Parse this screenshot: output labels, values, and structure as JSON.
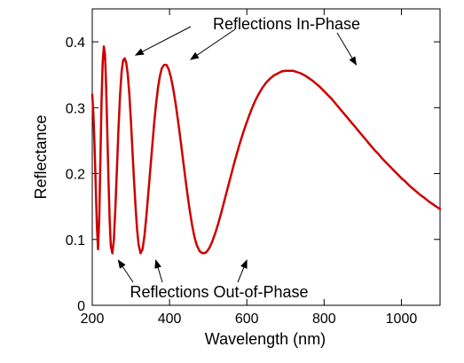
{
  "chart_data": {
    "type": "line",
    "title": "",
    "xlabel": "Wavelength (nm)",
    "ylabel": "Reflectance",
    "xlim": [
      200,
      1100
    ],
    "ylim": [
      0,
      0.45
    ],
    "xticks": [
      200,
      400,
      600,
      800,
      1000
    ],
    "yticks": [
      0,
      0.1,
      0.2,
      0.3,
      0.4
    ],
    "xtick_labels": [
      "200",
      "400",
      "600",
      "800",
      "1000"
    ],
    "ytick_labels": [
      "0",
      "0.1",
      "0.2",
      "0.3",
      "0.4"
    ],
    "grid": false,
    "line_color": "#cc0000",
    "series": [
      {
        "x": [
          200,
          203,
          206,
          209,
          212,
          215,
          218,
          221,
          224,
          227,
          230,
          233,
          236,
          239,
          242,
          245,
          248,
          252,
          256,
          260,
          264,
          268,
          272,
          276,
          280,
          284,
          288,
          292,
          296,
          300,
          304,
          308,
          312,
          316,
          320,
          325,
          330,
          335,
          340,
          345,
          350,
          355,
          360,
          365,
          370,
          375,
          380,
          386,
          392,
          398,
          404,
          410,
          416,
          422,
          428,
          434,
          440,
          446,
          452,
          458,
          464,
          470,
          478,
          486,
          494,
          502,
          510,
          518,
          526,
          534,
          542,
          550,
          558,
          566,
          574,
          582,
          590,
          598,
          606,
          614,
          622,
          630,
          640,
          650,
          660,
          670,
          680,
          690,
          700,
          710,
          720,
          730,
          740,
          750,
          760,
          770,
          780,
          790,
          800,
          810,
          820,
          830,
          840,
          850,
          860,
          870,
          880,
          890,
          900,
          910,
          920,
          930,
          940,
          950,
          960,
          970,
          980,
          990,
          1000,
          1010,
          1020,
          1030,
          1040,
          1050,
          1060,
          1070,
          1080,
          1090,
          1100
        ],
        "values": [
          0.32,
          0.29,
          0.24,
          0.18,
          0.12,
          0.085,
          0.13,
          0.22,
          0.31,
          0.37,
          0.393,
          0.38,
          0.33,
          0.26,
          0.19,
          0.13,
          0.09,
          0.079,
          0.1,
          0.15,
          0.21,
          0.27,
          0.32,
          0.355,
          0.372,
          0.375,
          0.368,
          0.35,
          0.32,
          0.28,
          0.235,
          0.19,
          0.15,
          0.115,
          0.092,
          0.079,
          0.085,
          0.105,
          0.135,
          0.17,
          0.205,
          0.24,
          0.275,
          0.305,
          0.33,
          0.348,
          0.36,
          0.365,
          0.365,
          0.358,
          0.345,
          0.327,
          0.305,
          0.28,
          0.253,
          0.225,
          0.197,
          0.17,
          0.145,
          0.123,
          0.105,
          0.092,
          0.082,
          0.079,
          0.08,
          0.086,
          0.096,
          0.109,
          0.124,
          0.141,
          0.159,
          0.177,
          0.195,
          0.213,
          0.23,
          0.246,
          0.261,
          0.275,
          0.288,
          0.3,
          0.311,
          0.32,
          0.33,
          0.338,
          0.344,
          0.349,
          0.352,
          0.355,
          0.356,
          0.356,
          0.356,
          0.354,
          0.352,
          0.349,
          0.345,
          0.341,
          0.336,
          0.331,
          0.325,
          0.319,
          0.313,
          0.306,
          0.299,
          0.292,
          0.285,
          0.278,
          0.271,
          0.264,
          0.257,
          0.25,
          0.243,
          0.236,
          0.23,
          0.223,
          0.217,
          0.211,
          0.205,
          0.199,
          0.193,
          0.188,
          0.182,
          0.177,
          0.172,
          0.167,
          0.163,
          0.158,
          0.154,
          0.15,
          0.146
        ]
      }
    ],
    "annotations": [
      {
        "text": "Reflections In-Phase",
        "arrows_to": [
          [
            305,
            0.377
          ],
          [
            450,
            0.365
          ],
          [
            890,
            0.357
          ]
        ]
      },
      {
        "text": "Reflections Out-of-Phase",
        "arrows_to": [
          [
            265,
            0.078
          ],
          [
            362,
            0.078
          ],
          [
            600,
            0.078
          ]
        ]
      }
    ]
  }
}
